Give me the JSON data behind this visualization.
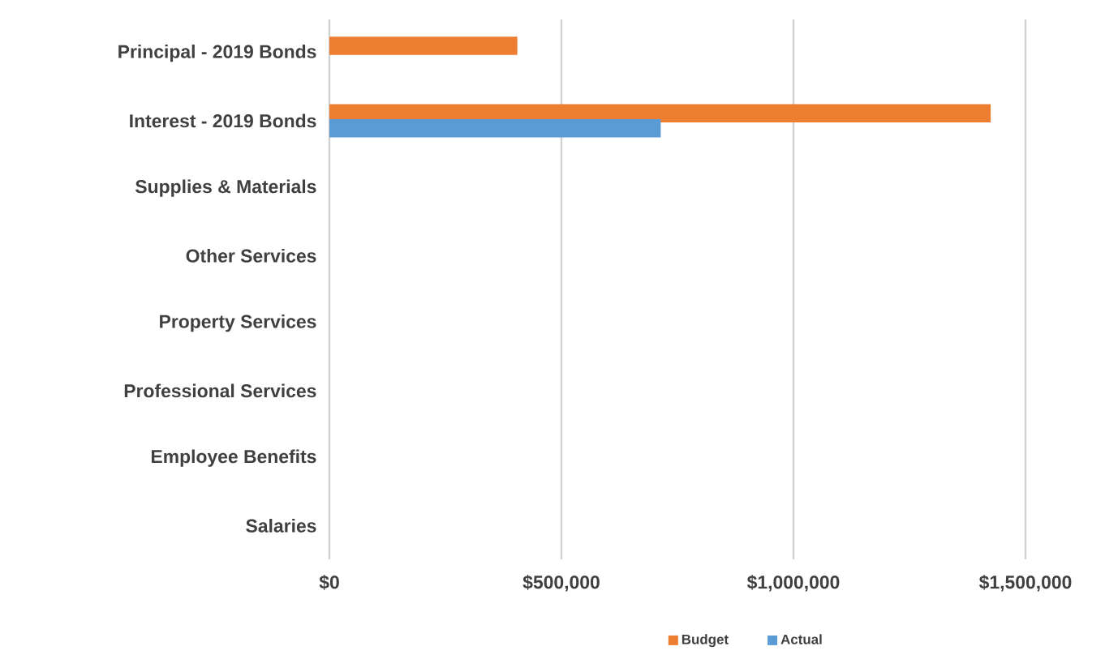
{
  "chart_data": {
    "type": "bar",
    "orientation": "horizontal",
    "categories": [
      "Principal - 2019 Bonds",
      "Interest - 2019 Bonds",
      "Supplies & Materials",
      "Other Services",
      "Property Services",
      "Professional Services",
      "Employee Benefits",
      "Salaries"
    ],
    "series": [
      {
        "name": "Budget",
        "color": "#ed7d31",
        "values": [
          405000,
          1425000,
          0,
          0,
          0,
          0,
          0,
          0
        ]
      },
      {
        "name": "Actual",
        "color": "#5b9bd5",
        "values": [
          0,
          714000,
          0,
          0,
          0,
          0,
          0,
          0
        ]
      }
    ],
    "xlim": [
      0,
      1500000
    ],
    "xticks": [
      {
        "value": 0,
        "label": "$0"
      },
      {
        "value": 500000,
        "label": "$500,000"
      },
      {
        "value": 1000000,
        "label": "$1,000,000"
      },
      {
        "value": 1500000,
        "label": "$1,500,000"
      }
    ],
    "grid": "x",
    "legend": "bottom"
  }
}
